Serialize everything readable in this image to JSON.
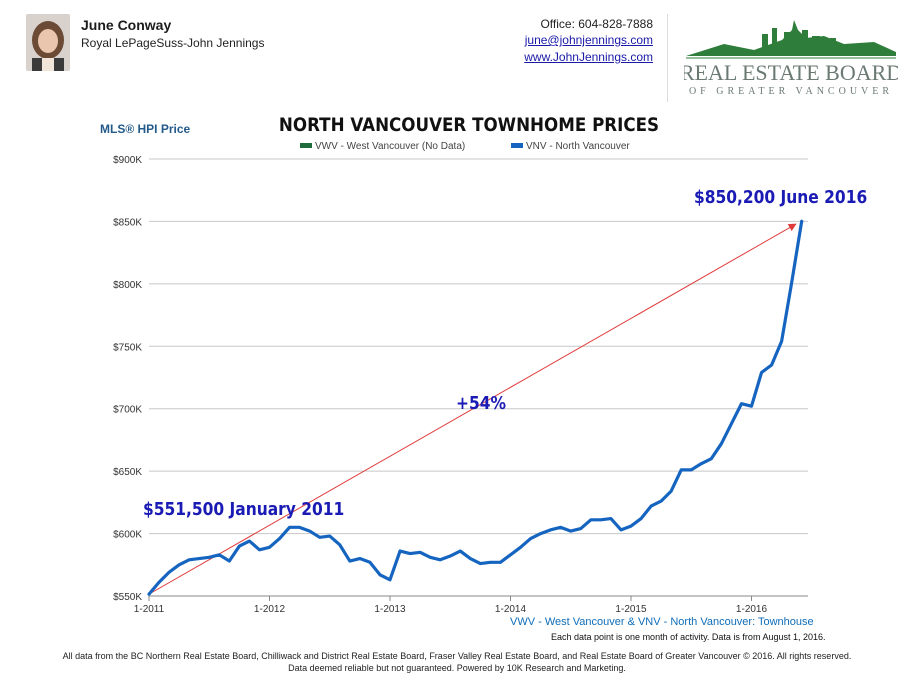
{
  "agent": {
    "name": "June Conway",
    "company": "Royal LePageSuss-John Jennings"
  },
  "contact": {
    "office": "Office: 604-828-7888",
    "email": "june@johnjennings.com",
    "website": "www.JohnJennings.com"
  },
  "logo": {
    "line1": "REAL ESTATE BOARD",
    "line2": "OF GREATER VANCOUVER"
  },
  "colors": {
    "line": "#1565c0",
    "arrow": "#e03b3b",
    "annotation": "#1a1ab4",
    "legend_wvw": "#1e6b3c",
    "legend_vnv": "#1565c0",
    "logo_green": "#2e7d3a"
  },
  "chart_data": {
    "type": "line",
    "title": "NORTH VANCOUVER TOWNHOME PRICES",
    "ylabel": "MLS® HPI Price",
    "ylim": [
      550000,
      900000
    ],
    "y_ticks": [
      "$550K",
      "$600K",
      "$650K",
      "$700K",
      "$750K",
      "$800K",
      "$850K",
      "$900K"
    ],
    "x_ticks": [
      "1-2011",
      "1-2012",
      "1-2013",
      "1-2014",
      "1-2015",
      "1-2016"
    ],
    "legend": [
      "VWV - West Vancouver (No Data)",
      "VNV - North Vancouver"
    ],
    "series": [
      {
        "name": "VNV - North Vancouver",
        "x": [
          "2011-01",
          "2011-02",
          "2011-03",
          "2011-04",
          "2011-05",
          "2011-06",
          "2011-07",
          "2011-08",
          "2011-09",
          "2011-10",
          "2011-11",
          "2011-12",
          "2012-01",
          "2012-02",
          "2012-03",
          "2012-04",
          "2012-05",
          "2012-06",
          "2012-07",
          "2012-08",
          "2012-09",
          "2012-10",
          "2012-11",
          "2012-12",
          "2013-01",
          "2013-02",
          "2013-03",
          "2013-04",
          "2013-05",
          "2013-06",
          "2013-07",
          "2013-08",
          "2013-09",
          "2013-10",
          "2013-11",
          "2013-12",
          "2014-01",
          "2014-02",
          "2014-03",
          "2014-04",
          "2014-05",
          "2014-06",
          "2014-07",
          "2014-08",
          "2014-09",
          "2014-10",
          "2014-11",
          "2014-12",
          "2015-01",
          "2015-02",
          "2015-03",
          "2015-04",
          "2015-05",
          "2015-06",
          "2015-07",
          "2015-08",
          "2015-09",
          "2015-10",
          "2015-11",
          "2015-12",
          "2016-01",
          "2016-02",
          "2016-03",
          "2016-04",
          "2016-05",
          "2016-06"
        ],
        "values": [
          551500,
          561000,
          569000,
          575000,
          579000,
          580000,
          581000,
          583000,
          578000,
          590000,
          594000,
          587000,
          589000,
          596000,
          605000,
          605000,
          602000,
          597000,
          598000,
          591000,
          578000,
          580000,
          577000,
          567000,
          563000,
          586000,
          584000,
          585000,
          581000,
          579000,
          582000,
          586000,
          580000,
          576000,
          577000,
          577000,
          583000,
          589000,
          596000,
          600000,
          603000,
          605000,
          602000,
          604000,
          611000,
          611000,
          612000,
          603000,
          606000,
          612000,
          622000,
          626000,
          634000,
          651000,
          651000,
          656000,
          660000,
          672000,
          688000,
          704000,
          702000,
          729000,
          735000,
          754000,
          801000,
          850200
        ]
      }
    ],
    "annotations": [
      {
        "text": "$551,500 January 2011",
        "x": "2011-01",
        "y": 551500
      },
      {
        "text": "+54%"
      },
      {
        "text": "$850,200 June 2016",
        "x": "2016-06",
        "y": 850200
      }
    ]
  },
  "footer": {
    "legend": "VWV - West Vancouver & VNV - North Vancouver: Townhouse",
    "note": "Each data point is one month of activity. Data is from August 1, 2016.",
    "line1": "All data from the BC Northern Real Estate Board, Chilliwack and District Real Estate Board, Fraser Valley Real Estate Board, and Real Estate Board of Greater Vancouver © 2016. All rights reserved.",
    "line2": "Data deemed reliable but not guaranteed. Powered by 10K Research and Marketing."
  }
}
